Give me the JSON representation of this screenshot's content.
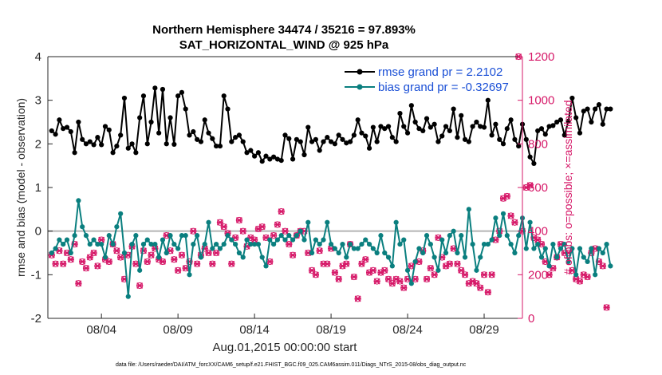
{
  "chart_data": {
    "type": "line",
    "title": "Northern Hemisphere 34474 / 35216 = 97.893%",
    "subtitle": "SAT_HORIZONTAL_WIND @ 925 hPa",
    "xlabel": "Aug.01,2015 00:00:00 start",
    "ylabel": "rmse and bias (model - observation)",
    "ylabel_right": "# of obs: o=possible; ×=assimilated",
    "ylim": [
      -2,
      4
    ],
    "ylim_right": [
      0,
      1200
    ],
    "xlim": [
      0.5,
      31.5
    ],
    "x_ticks": [
      {
        "label": "08/04",
        "value": 4
      },
      {
        "label": "08/09",
        "value": 9
      },
      {
        "label": "08/14",
        "value": 14
      },
      {
        "label": "08/19",
        "value": 19
      },
      {
        "label": "08/24",
        "value": 24
      },
      {
        "label": "08/29",
        "value": 29
      }
    ],
    "y_ticks": [
      "4",
      "3",
      "2",
      "1",
      "0",
      "-1",
      "-2"
    ],
    "y_tick_values": [
      4,
      3,
      2,
      1,
      0,
      -1,
      -2
    ],
    "y_ticks_right": [
      "1200",
      "1000",
      "800",
      "600",
      "400",
      "200",
      "0"
    ],
    "y_tick_values_right": [
      1200,
      1000,
      800,
      600,
      400,
      200,
      0
    ],
    "legend": [
      {
        "label": "rmse grand pr = 2.2102",
        "color": "#000000"
      },
      {
        "label": "bias grand pr = -0.32697",
        "color": "#0a7f7f"
      }
    ],
    "footnote": "data file: /Users/raeder/DAI/ATM_forcXX/CAM6_setup/f.e21.FHIST_BGC.f09_025.CAM6assim.011/Diags_NTrS_2015-08/obs_diag_output.nc",
    "x_start": 0.75,
    "x_step": 0.25,
    "series": [
      {
        "name": "rmse",
        "color": "#000000",
        "values": [
          2.3,
          2.22,
          2.55,
          2.35,
          2.38,
          2.28,
          1.8,
          2.5,
          2.1,
          2.0,
          2.05,
          1.98,
          2.15,
          1.98,
          2.4,
          2.32,
          1.8,
          1.95,
          2.2,
          3.05,
          1.9,
          2.0,
          1.8,
          2.6,
          3.1,
          2.0,
          2.5,
          3.28,
          2.25,
          3.25,
          2.0,
          2.6,
          1.99,
          3.1,
          3.18,
          2.8,
          2.2,
          2.28,
          2.1,
          2.05,
          2.55,
          2.25,
          2.12,
          1.95,
          1.95,
          3.1,
          2.8,
          2.05,
          2.15,
          2.2,
          2.05,
          1.8,
          1.85,
          1.72,
          1.8,
          1.6,
          1.72,
          1.65,
          1.7,
          1.65,
          1.62,
          2.2,
          2.12,
          1.65,
          2.1,
          2.05,
          1.75,
          2.38,
          2.05,
          2.1,
          1.85,
          2.05,
          2.15,
          2.05,
          2.0,
          2.2,
          2.1,
          2.02,
          2.05,
          2.2,
          2.55,
          2.25,
          2.18,
          1.9,
          2.38,
          2.05,
          2.4,
          2.35,
          2.4,
          2.15,
          2.05,
          2.7,
          2.4,
          2.25,
          2.88,
          2.5,
          2.35,
          2.3,
          2.58,
          2.38,
          2.45,
          2.05,
          2.18,
          2.4,
          2.3,
          2.8,
          2.15,
          2.65,
          2.1,
          2.05,
          2.4,
          2.5,
          2.4,
          2.38,
          3.0,
          2.2,
          2.45,
          2.1,
          2.0,
          2.35,
          2.55,
          2.1,
          1.95,
          2.45,
          2.1,
          1.7,
          1.55,
          2.3,
          2.35,
          2.22,
          2.4,
          2.42,
          2.5,
          2.55,
          2.2,
          2.52,
          3.05,
          2.6,
          2.25,
          2.75,
          2.8,
          2.5,
          2.8,
          2.9,
          2.45,
          2.8,
          2.8
        ]
      },
      {
        "name": "bias",
        "color": "#0a7f7f",
        "values": [
          -0.5,
          -0.4,
          -0.2,
          -0.3,
          -0.2,
          -0.5,
          -0.1,
          0.7,
          0.1,
          -0.1,
          -0.3,
          -0.2,
          -0.3,
          -0.3,
          -0.6,
          -0.1,
          -0.3,
          0.1,
          0.4,
          -0.5,
          -1.5,
          -0.3,
          -0.1,
          -0.9,
          -0.3,
          -0.2,
          -0.3,
          -0.3,
          -0.6,
          -0.2,
          -0.5,
          -0.1,
          -0.3,
          -0.4,
          -0.1,
          -0.1,
          -1.0,
          -0.3,
          -0.1,
          -0.6,
          -0.3,
          0.2,
          -0.4,
          -0.3,
          -0.4,
          -0.3,
          -0.1,
          -0.2,
          -0.3,
          -0.5,
          -0.6,
          -0.2,
          -0.3,
          -0.3,
          -0.3,
          -0.6,
          -0.8,
          -0.2,
          -0.3,
          -0.2,
          -0.1,
          -0.2,
          -0.1,
          -0.2,
          -0.1,
          0.0,
          -0.2,
          0.2,
          -0.5,
          -0.2,
          -0.3,
          -0.2,
          0.2,
          -0.3,
          -0.4,
          -0.5,
          -0.3,
          -0.6,
          -0.3,
          -0.4,
          -0.4,
          -0.3,
          -0.2,
          -0.3,
          -0.4,
          -0.5,
          -0.1,
          -0.5,
          -0.6,
          -0.8,
          0.2,
          -0.3,
          -0.2,
          -0.9,
          -1.2,
          -0.7,
          -0.4,
          -0.5,
          -0.1,
          -0.3,
          -0.6,
          -0.9,
          -0.2,
          -0.5,
          -0.1,
          0.0,
          -0.5,
          -0.1,
          -0.6,
          0.5,
          -0.3,
          -0.9,
          -0.6,
          -0.3,
          -0.3,
          -0.2,
          0.3,
          -0.1,
          0.4,
          -0.1,
          -0.3,
          -0.5,
          -0.1,
          0.3,
          -0.4,
          0.2,
          -0.4,
          -0.3,
          -0.6,
          -0.4,
          -0.8,
          -0.3,
          -0.6,
          -0.4,
          -0.3,
          -0.7,
          -0.4,
          -1.0,
          -0.4,
          -0.6,
          -0.7,
          -0.4,
          -1.0,
          -0.4,
          -0.5,
          -0.3,
          -0.8
        ]
      },
      {
        "name": "obs count (possible / assimilated)",
        "color": "#d61868",
        "axis": "right",
        "values": [
          290,
          250,
          310,
          250,
          300,
          270,
          340,
          160,
          260,
          230,
          280,
          300,
          240,
          360,
          270,
          260,
          340,
          310,
          280,
          180,
          290,
          330,
          250,
          150,
          310,
          260,
          290,
          320,
          270,
          260,
          380,
          310,
          270,
          220,
          290,
          230,
          260,
          400,
          250,
          290,
          320,
          300,
          250,
          300,
          440,
          420,
          390,
          250,
          370,
          450,
          400,
          330,
          370,
          360,
          410,
          420,
          370,
          260,
          380,
          430,
          490,
          400,
          340,
          290,
          380,
          400,
          400,
          300,
          220,
          200,
          310,
          250,
          250,
          320,
          210,
          180,
          240,
          250,
          340,
          190,
          90,
          250,
          270,
          210,
          220,
          170,
          210,
          220,
          180,
          160,
          180,
          170,
          140,
          180,
          240,
          180,
          260,
          310,
          180,
          230,
          200,
          370,
          280,
          240,
          250,
          320,
          250,
          220,
          200,
          160,
          170,
          160,
          140,
          200,
          120,
          200,
          360,
          400,
          550,
          560,
          470,
          440,
          1200,
          400,
          600,
          610,
          370,
          360,
          340,
          260,
          200,
          230,
          280,
          340,
          300,
          300,
          220,
          180,
          170,
          200,
          190,
          300,
          320,
          260,
          240,
          50
        ]
      }
    ]
  }
}
